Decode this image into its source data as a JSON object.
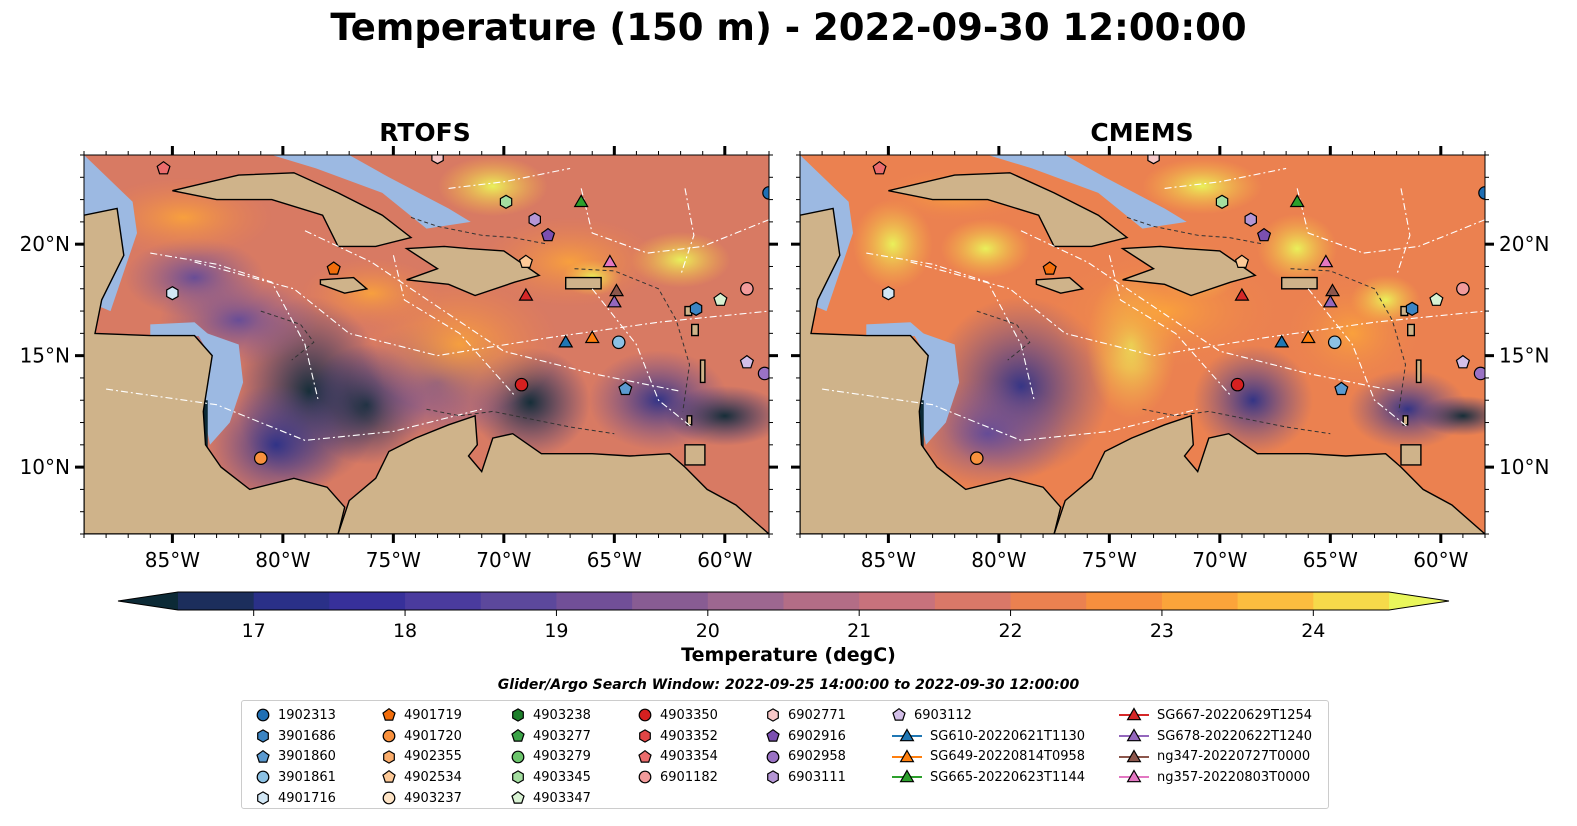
{
  "title": "Temperature (150 m) - 2022-09-30 12:00:00",
  "panels": [
    {
      "title": "RTOFS"
    },
    {
      "title": "CMEMS"
    }
  ],
  "axes": {
    "lon_ticks": [
      "85°W",
      "80°W",
      "75°W",
      "70°W",
      "65°W",
      "60°W"
    ],
    "lat_ticks": [
      "20°N",
      "15°N",
      "10°N"
    ],
    "lon_range": [
      -89,
      -58
    ],
    "lat_range": [
      7,
      24
    ]
  },
  "colorbar": {
    "label": "Temperature (degC)",
    "ticks": [
      "17",
      "18",
      "19",
      "20",
      "21",
      "22",
      "23",
      "24"
    ],
    "range": [
      16.5,
      24.5
    ],
    "step": 0.5,
    "extend": "both",
    "colors": [
      "#0c2a36",
      "#1c2e5c",
      "#2a3088",
      "#37309a",
      "#4a3b9e",
      "#5c489c",
      "#714f98",
      "#885c93",
      "#9d6790",
      "#b36d86",
      "#c8727c",
      "#da7868",
      "#eb8150",
      "#f78f3e",
      "#fba43a",
      "#fcbd3f",
      "#f6da4a",
      "#e9f65b"
    ]
  },
  "colors": {
    "land": "#cfb38a",
    "shallow_water": "#9cb9e2",
    "dark_ocean": "#0c2a36"
  },
  "legend": {
    "title": "Glider/Argo Search Window: 2022-09-25 14:00:00 to 2022-09-30 12:00:00",
    "columns": [
      [
        {
          "label": "1902313",
          "marker": "circle",
          "color": "#1f6fb4"
        },
        {
          "label": "3901686",
          "marker": "hexagon",
          "color": "#3b84c3"
        },
        {
          "label": "3901860",
          "marker": "pentagon",
          "color": "#5b9ad0"
        },
        {
          "label": "3901861",
          "marker": "circle",
          "color": "#8cc1e4"
        },
        {
          "label": "4901716",
          "marker": "hexagon",
          "color": "#d2e7f5"
        }
      ],
      [
        {
          "label": "4901719",
          "marker": "pentagon",
          "color": "#f26d0b"
        },
        {
          "label": "4901720",
          "marker": "circle",
          "color": "#f9913d"
        },
        {
          "label": "4902355",
          "marker": "hexagon",
          "color": "#fbad6b"
        },
        {
          "label": "4902534",
          "marker": "pentagon",
          "color": "#fdc997"
        },
        {
          "label": "4903237",
          "marker": "circle",
          "color": "#fee4c6"
        }
      ],
      [
        {
          "label": "4903238",
          "marker": "hexagon",
          "color": "#1d7f2a"
        },
        {
          "label": "4903277",
          "marker": "pentagon",
          "color": "#3ca448"
        },
        {
          "label": "4903279",
          "marker": "circle",
          "color": "#6cc56c"
        },
        {
          "label": "4903345",
          "marker": "hexagon",
          "color": "#a4dea0"
        },
        {
          "label": "4903347",
          "marker": "pentagon",
          "color": "#d8f2d3"
        }
      ],
      [
        {
          "label": "4903350",
          "marker": "circle",
          "color": "#d62020"
        },
        {
          "label": "4903352",
          "marker": "hexagon",
          "color": "#e24545"
        },
        {
          "label": "4903354",
          "marker": "pentagon",
          "color": "#eb6c6c"
        },
        {
          "label": "6901182",
          "marker": "circle",
          "color": "#f29b9b"
        }
      ],
      [
        {
          "label": "6902771",
          "marker": "hexagon",
          "color": "#f8c8c8"
        },
        {
          "label": "6902916",
          "marker": "pentagon",
          "color": "#7b4fb0"
        },
        {
          "label": "6902958",
          "marker": "circle",
          "color": "#9a72c4"
        },
        {
          "label": "6903111",
          "marker": "hexagon",
          "color": "#b596d5"
        }
      ],
      [
        {
          "label": "6903112",
          "marker": "pentagon",
          "color": "#d3bfe8"
        },
        {
          "label": "SG610-20220621T1130",
          "marker": "triangle-line",
          "color": "#1f77b4"
        },
        {
          "label": "SG649-20220814T0958",
          "marker": "triangle-line",
          "color": "#ff7f0e"
        },
        {
          "label": "SG665-20220623T1144",
          "marker": "triangle-line",
          "color": "#2ca02c"
        }
      ],
      [
        {
          "label": "SG667-20220629T1254",
          "marker": "triangle-line",
          "color": "#d62728"
        },
        {
          "label": "SG678-20220622T1240",
          "marker": "triangle-line",
          "color": "#9467bd"
        },
        {
          "label": "ng347-20220727T0000",
          "marker": "triangle-line",
          "color": "#8c564b"
        },
        {
          "label": "ng357-20220803T0000",
          "marker": "triangle-line",
          "color": "#e377c2"
        }
      ]
    ]
  },
  "markers": [
    {
      "label": "1902313",
      "lon": -58.0,
      "lat": 22.3
    },
    {
      "label": "4903354",
      "lon": -85.4,
      "lat": 23.4
    },
    {
      "label": "6902771",
      "lon": -73.0,
      "lat": 23.9
    },
    {
      "label": "4903345",
      "lon": -69.9,
      "lat": 21.9
    },
    {
      "label": "SG665-20220623T1144",
      "lon": -66.5,
      "lat": 21.9
    },
    {
      "label": "6903111",
      "lon": -68.6,
      "lat": 21.1
    },
    {
      "label": "6902916",
      "lon": -68.0,
      "lat": 20.4
    },
    {
      "label": "4902534",
      "lon": -69.0,
      "lat": 19.2
    },
    {
      "label": "ng357-20220803T0000",
      "lon": -65.2,
      "lat": 19.2
    },
    {
      "label": "4901719",
      "lon": -77.7,
      "lat": 18.9
    },
    {
      "label": "SG667-20220629T1254",
      "lon": -69.0,
      "lat": 17.7
    },
    {
      "label": "ng347-20220727T0000",
      "lon": -64.9,
      "lat": 17.9
    },
    {
      "label": "SG678-20220622T1240",
      "lon": -65.0,
      "lat": 17.4
    },
    {
      "label": "4901716",
      "lon": -85.0,
      "lat": 17.8
    },
    {
      "label": "6901182",
      "lon": -59.0,
      "lat": 18.0
    },
    {
      "label": "4903347",
      "lon": -60.2,
      "lat": 17.5
    },
    {
      "label": "3901686",
      "lon": -61.3,
      "lat": 17.1
    },
    {
      "label": "SG610-20220621T1130",
      "lon": -67.2,
      "lat": 15.6
    },
    {
      "label": "SG649-20220814T0958",
      "lon": -66.0,
      "lat": 15.8
    },
    {
      "label": "3901861",
      "lon": -64.8,
      "lat": 15.6
    },
    {
      "label": "6903112",
      "lon": -59.0,
      "lat": 14.7
    },
    {
      "label": "6902958",
      "lon": -58.2,
      "lat": 14.2
    },
    {
      "label": "4903350",
      "lon": -69.2,
      "lat": 13.7
    },
    {
      "label": "3901860",
      "lon": -64.5,
      "lat": 13.5
    },
    {
      "label": "4901720",
      "lon": -81.0,
      "lat": 10.4
    }
  ]
}
